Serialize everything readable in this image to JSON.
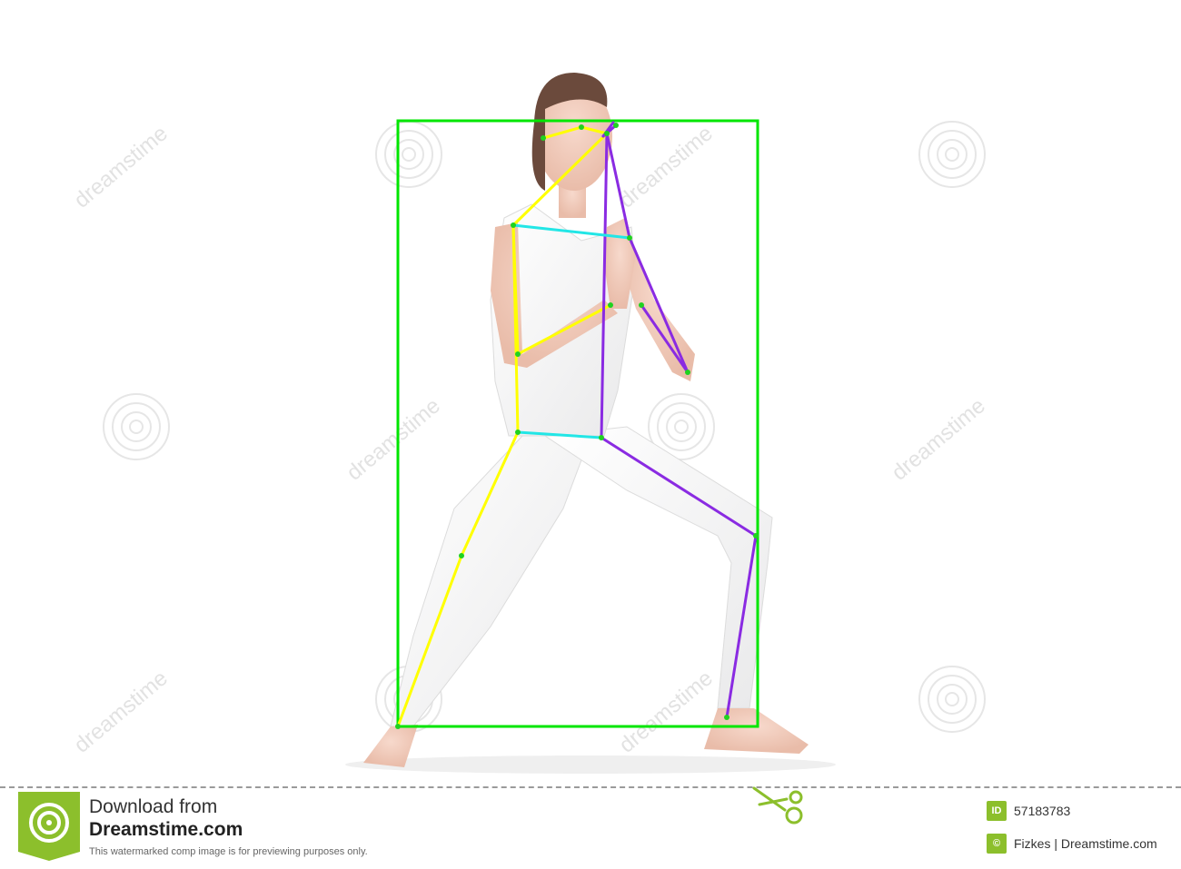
{
  "colors": {
    "bounding_box": "#00e600",
    "left_limbs": "#ffff00",
    "right_limbs": "#8a2be2",
    "torso_cross": "#22e6e6",
    "keypoints": "#1fd21f",
    "brand_green": "#8cbf2c"
  },
  "pose_overlay": {
    "person_count": 1,
    "skeleton": [
      "head",
      "shoulders",
      "elbows",
      "wrists",
      "hips",
      "knees",
      "ankles"
    ]
  },
  "watermark": {
    "repeated_text": "dreamstime"
  },
  "footer": {
    "download_line1": "Download from",
    "download_line2": "Dreamstime.com",
    "disclaimer": "This watermarked comp image is for previewing purposes only.",
    "id_badge": "ID",
    "image_id": "57183783",
    "copyright_symbol": "©",
    "author_credit": "Fizkes | Dreamstime.com",
    "icons": [
      "dreamstime-logo-icon",
      "scissors-icon"
    ]
  }
}
